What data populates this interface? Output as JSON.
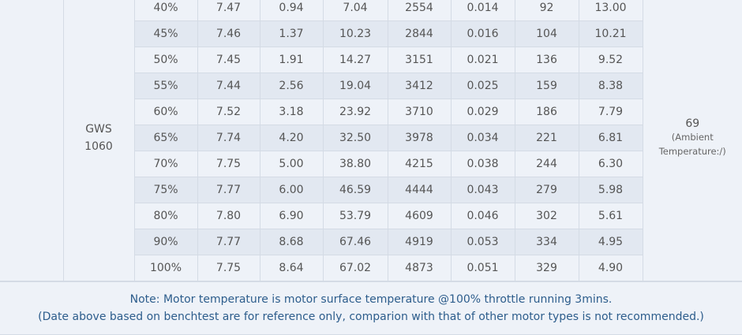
{
  "table": {
    "prop": "GWS 1060",
    "temperature": "69",
    "temperature_note": "(Ambient Temperature:/)",
    "rows": [
      [
        "40%",
        "7.47",
        "0.94",
        "7.04",
        "2554",
        "0.014",
        "92",
        "13.00"
      ],
      [
        "45%",
        "7.46",
        "1.37",
        "10.23",
        "2844",
        "0.016",
        "104",
        "10.21"
      ],
      [
        "50%",
        "7.45",
        "1.91",
        "14.27",
        "3151",
        "0.021",
        "136",
        "9.52"
      ],
      [
        "55%",
        "7.44",
        "2.56",
        "19.04",
        "3412",
        "0.025",
        "159",
        "8.38"
      ],
      [
        "60%",
        "7.52",
        "3.18",
        "23.92",
        "3710",
        "0.029",
        "186",
        "7.79"
      ],
      [
        "65%",
        "7.74",
        "4.20",
        "32.50",
        "3978",
        "0.034",
        "221",
        "6.81"
      ],
      [
        "70%",
        "7.75",
        "5.00",
        "38.80",
        "4215",
        "0.038",
        "244",
        "6.30"
      ],
      [
        "75%",
        "7.77",
        "6.00",
        "46.59",
        "4444",
        "0.043",
        "279",
        "5.98"
      ],
      [
        "80%",
        "7.80",
        "6.90",
        "53.79",
        "4609",
        "0.046",
        "302",
        "5.61"
      ],
      [
        "90%",
        "7.77",
        "8.68",
        "67.46",
        "4919",
        "0.053",
        "334",
        "4.95"
      ],
      [
        "100%",
        "7.75",
        "8.64",
        "67.02",
        "4873",
        "0.051",
        "329",
        "4.90"
      ]
    ]
  },
  "note": [
    "Note: Motor temperature is motor surface temperature @100% throttle running 3mins.",
    "(Date above based on benchtest are for reference only, comparion with that of other motor types is not recommended.)"
  ]
}
